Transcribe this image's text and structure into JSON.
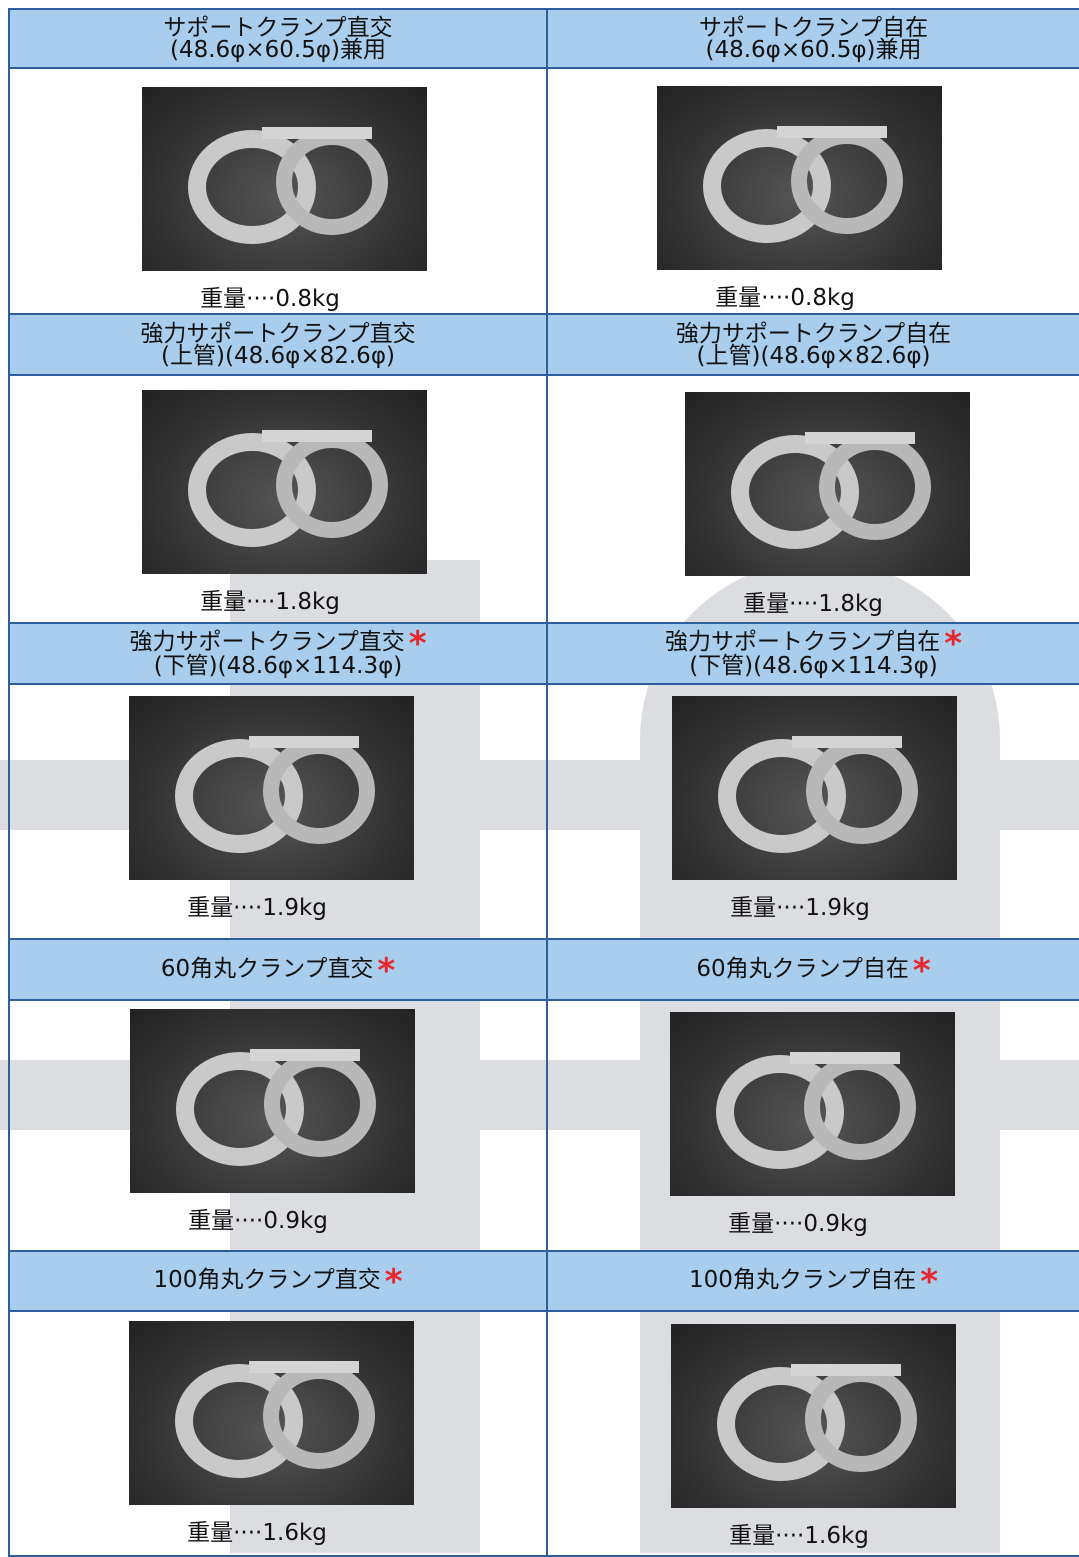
{
  "rows": [
    {
      "items": [
        {
          "title": [
            "サポートクランプ直交",
            "(48.6φ×60.5φ)兼用"
          ],
          "weight": "重量····0.8kg"
        },
        {
          "title": [
            "サポートクランプ自在",
            "(48.6φ×60.5φ)兼用"
          ],
          "weight": "重量····0.8kg"
        }
      ]
    },
    {
      "items": [
        {
          "title": [
            "強力サポートクランプ直交",
            "(上管)(48.6φ×82.6φ)"
          ],
          "weight": "重量····1.8kg"
        },
        {
          "title": [
            "強力サポートクランプ自在",
            "(上管)(48.6φ×82.6φ)"
          ],
          "weight": "重量····1.8kg"
        }
      ]
    },
    {
      "items": [
        {
          "title": [
            "強力サポートクランプ直交",
            "(下管)(48.6φ×114.3φ)"
          ],
          "mark": "*",
          "weight": "重量····1.9kg"
        },
        {
          "title": [
            "強力サポートクランプ自在",
            "(下管)(48.6φ×114.3φ)"
          ],
          "mark": "*",
          "weight": "重量····1.9kg"
        }
      ]
    },
    {
      "items": [
        {
          "title": [
            "60角丸クランプ直交"
          ],
          "mark": "*",
          "weight": "重量····0.9kg"
        },
        {
          "title": [
            "60角丸クランプ自在"
          ],
          "mark": "*",
          "weight": "重量····0.9kg"
        }
      ]
    },
    {
      "items": [
        {
          "title": [
            "100角丸クランプ直交"
          ],
          "mark": "*",
          "weight": "重量····1.6kg"
        },
        {
          "title": [
            "100角丸クランプ自在"
          ],
          "mark": "*",
          "weight": "重量····1.6kg"
        }
      ]
    }
  ]
}
